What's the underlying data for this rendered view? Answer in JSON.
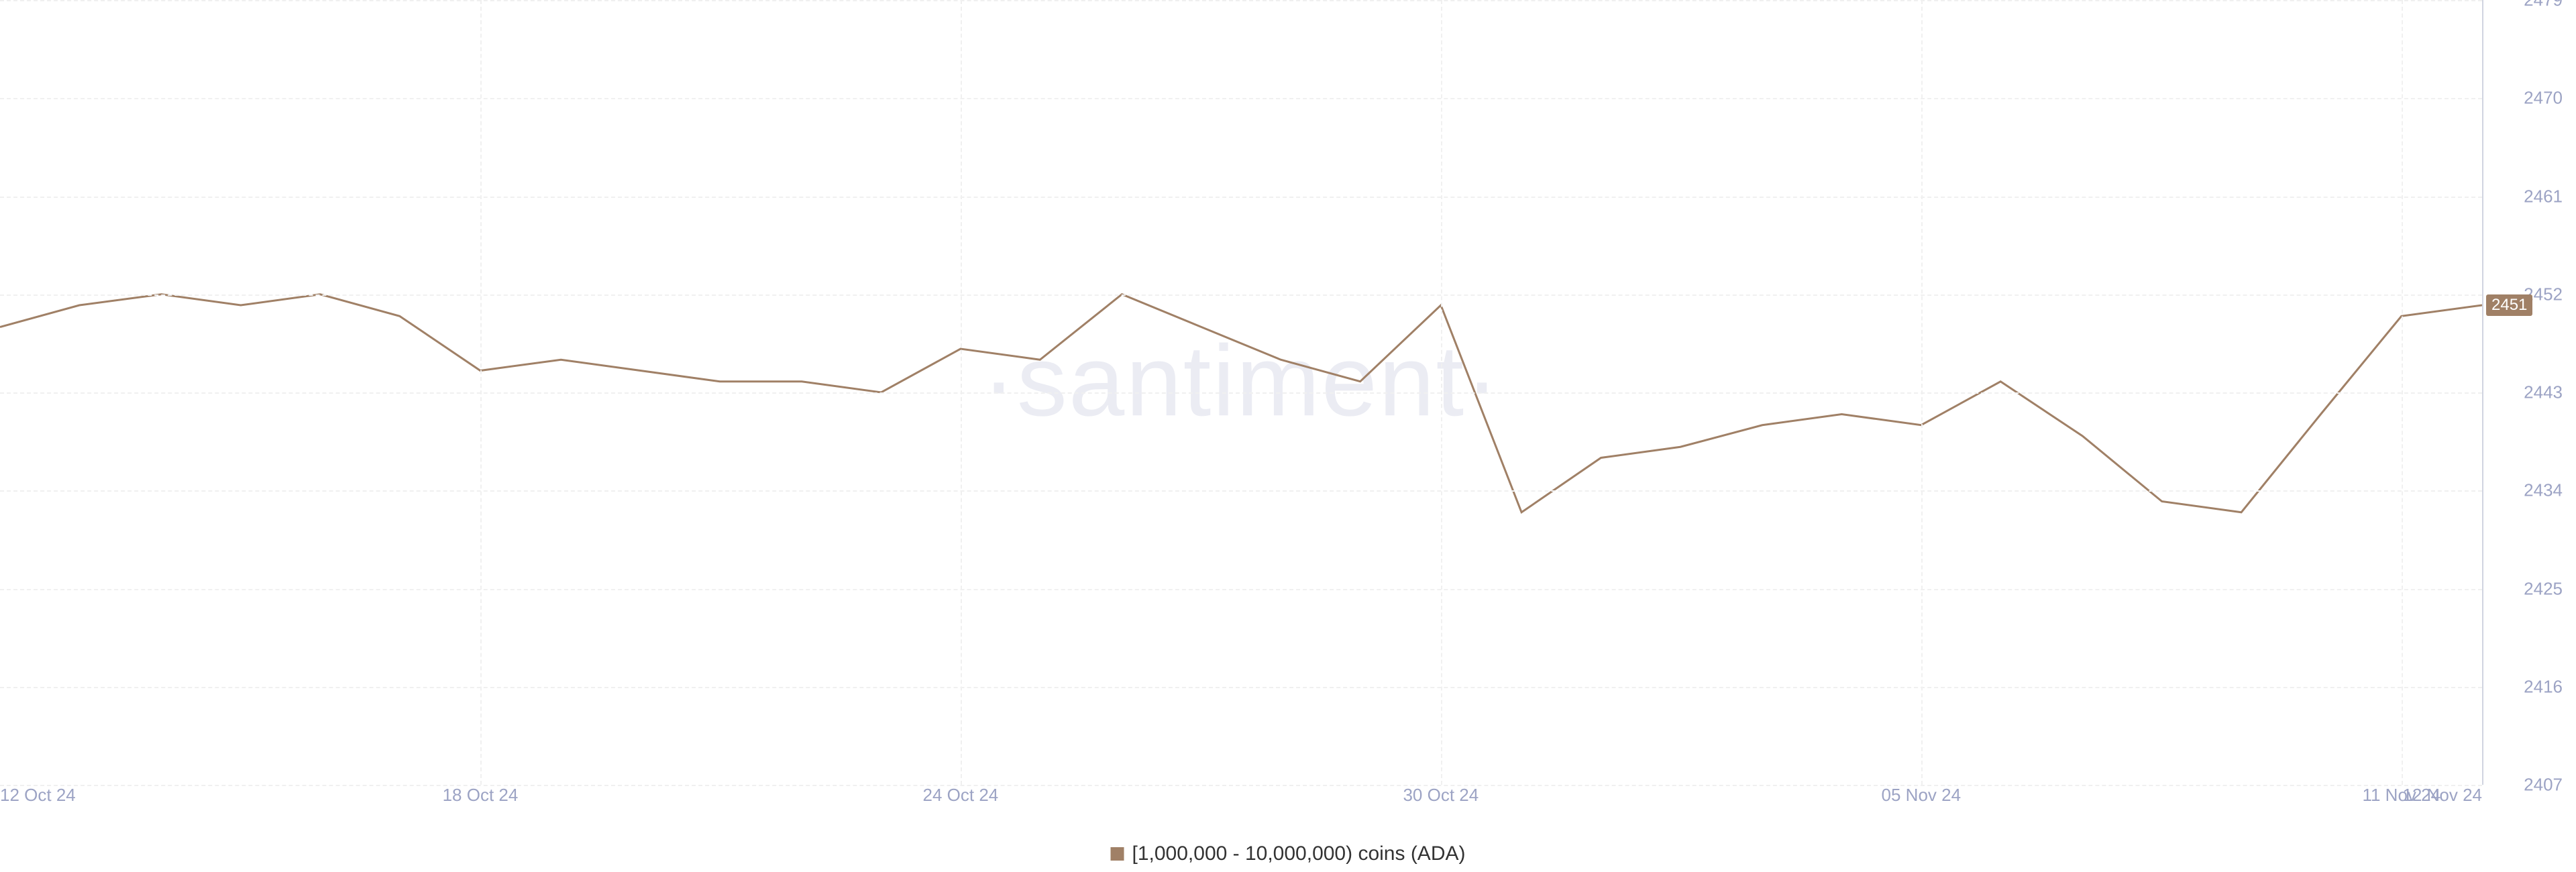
{
  "chart": {
    "type": "line",
    "watermark": "·santiment·",
    "background_color": "#ffffff",
    "grid_color": "#f0f0f0",
    "axis_text_color": "#9ca3c4",
    "axis_line_color": "#d0d4e0",
    "axis_fontsize": 26,
    "y_axis": {
      "position": "right",
      "min": 2407,
      "max": 2479,
      "ticks": [
        2407,
        2416,
        2425,
        2434,
        2443,
        2452,
        2461,
        2470,
        2479
      ],
      "tick_labels": [
        "2407",
        "2416",
        "2425",
        "2434",
        "2443",
        "2452",
        "2461",
        "2470",
        "2479"
      ]
    },
    "x_axis": {
      "tick_labels": [
        "12 Oct 24",
        "18 Oct 24",
        "24 Oct 24",
        "30 Oct 24",
        "05 Nov 24",
        "11 Nov 24",
        "12 Nov 24"
      ],
      "tick_positions": [
        0,
        0.1935,
        0.387,
        0.5805,
        0.774,
        0.9675,
        1.0
      ]
    },
    "series": {
      "label": "[1,000,000 - 10,000,000) coins (ADA)",
      "color": "#a08066",
      "line_width": 3,
      "data_x": [
        0,
        0.032,
        0.065,
        0.097,
        0.129,
        0.161,
        0.1935,
        0.226,
        0.258,
        0.29,
        0.323,
        0.355,
        0.387,
        0.419,
        0.452,
        0.484,
        0.516,
        0.548,
        0.5805,
        0.613,
        0.645,
        0.677,
        0.71,
        0.742,
        0.774,
        0.806,
        0.839,
        0.871,
        0.903,
        0.935,
        0.9675,
        1.0
      ],
      "data_y": [
        2449,
        2451,
        2452,
        2451,
        2452,
        2450,
        2445,
        2446,
        2445,
        2444,
        2444,
        2443,
        2447,
        2446,
        2452,
        2449,
        2446,
        2444,
        2451,
        2432,
        2437,
        2438,
        2440,
        2441,
        2440,
        2444,
        2439,
        2433,
        2432,
        2441,
        2450,
        2451
      ],
      "last_value_label": "2451",
      "last_value_badge_bg": "#a08066"
    },
    "legend": {
      "fontsize": 30,
      "text_color": "#333333"
    }
  }
}
